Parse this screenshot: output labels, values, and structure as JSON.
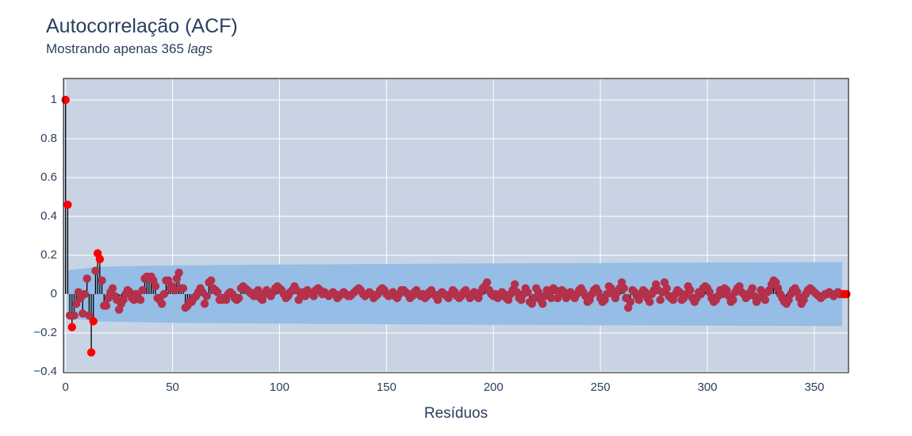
{
  "chart_data": {
    "type": "acf",
    "title": "Autocorrelação (ACF)",
    "subtitle": "Mostrando apenas 365",
    "subtitle_emphasis": "lags",
    "x_label": "Resíduos",
    "xlim": [
      -1,
      366
    ],
    "ylim": [
      -0.404,
      1.11
    ],
    "xticks": [
      0,
      50,
      100,
      150,
      200,
      250,
      300,
      350
    ],
    "yticks": [
      {
        "value": -0.4,
        "label": "−0.4"
      },
      {
        "value": -0.2,
        "label": "−0.2"
      },
      0,
      0.2,
      0.4,
      0.6,
      0.8,
      1
    ],
    "grid": true,
    "background": "#c8d4e3",
    "stem_color": "#000000",
    "marker_color": "#b5304a",
    "significant_color": "#ff0000",
    "band": {
      "color": "#95bde6",
      "x": [
        1,
        2,
        15,
        20,
        50,
        100,
        200,
        363
      ],
      "upper": [
        0.115,
        0.125,
        0.14,
        0.142,
        0.148,
        0.152,
        0.158,
        0.165
      ],
      "lower": [
        -0.115,
        -0.125,
        -0.14,
        -0.142,
        -0.148,
        -0.152,
        -0.158,
        -0.165
      ]
    },
    "values": [
      1,
      0.46,
      -0.11,
      -0.17,
      -0.11,
      -0.05,
      0.01,
      -0.02,
      -0.1,
      0.0,
      0.08,
      -0.11,
      -0.3,
      -0.14,
      0.12,
      0.21,
      0.18,
      0.07,
      -0.06,
      -0.06,
      -0.02,
      0.01,
      0.03,
      -0.01,
      -0.03,
      -0.08,
      -0.05,
      -0.03,
      0.0,
      0.02,
      0.01,
      -0.02,
      -0.03,
      0.0,
      -0.02,
      -0.03,
      0.02,
      0.08,
      0.09,
      0.08,
      0.09,
      0.07,
      0.04,
      -0.02,
      -0.03,
      -0.05,
      0.0,
      0.07,
      0.07,
      0.03,
      0.04,
      0.02,
      0.08,
      0.11,
      0.03,
      0.03,
      -0.07,
      -0.06,
      -0.04,
      -0.04,
      -0.02,
      -0.01,
      0.01,
      0.03,
      0.01,
      -0.05,
      -0.01,
      0.06,
      0.07,
      0.03,
      0.02,
      0.01,
      -0.03,
      -0.03,
      -0.02,
      -0.03,
      0.0,
      0.01,
      0.0,
      -0.02,
      -0.03,
      -0.02,
      0.03,
      0.04,
      0.03,
      0.02,
      0.01,
      0.0,
      -0.01,
      0.01,
      0.02,
      -0.02,
      -0.03,
      0.0,
      0.02,
      0.0,
      -0.01,
      0.01,
      0.03,
      0.04,
      0.03,
      0.02,
      0.0,
      -0.02,
      -0.01,
      0.01,
      0.02,
      0.04,
      0.02,
      -0.03,
      0.0,
      0.01,
      -0.01,
      0.02,
      0.01,
      0.0,
      -0.01,
      0.02,
      0.03,
      0.02,
      0.0,
      0.01,
      0.0,
      -0.01,
      0.0,
      0.01,
      0.0,
      -0.02,
      -0.01,
      0.0,
      0.01,
      0.0,
      -0.01,
      -0.01,
      0.0,
      0.01,
      0.02,
      0.03,
      0.02,
      0.0,
      -0.01,
      0.0,
      0.01,
      0.0,
      -0.02,
      -0.01,
      0.0,
      0.02,
      0.03,
      0.02,
      0.0,
      -0.01,
      0.0,
      0.01,
      -0.01,
      -0.02,
      0.0,
      0.02,
      0.02,
      0.01,
      0.0,
      -0.02,
      -0.01,
      0.01,
      0.02,
      0.0,
      -0.01,
      0.0,
      -0.02,
      -0.01,
      0.01,
      0.02,
      0.0,
      -0.01,
      -0.03,
      0.0,
      0.01,
      0.0,
      -0.01,
      -0.02,
      0.0,
      0.02,
      0.01,
      -0.01,
      -0.02,
      -0.01,
      0.01,
      0.02,
      0.0,
      -0.02,
      -0.01,
      0.01,
      0.0,
      -0.02,
      0.01,
      0.03,
      0.04,
      0.06,
      0.02,
      0.0,
      -0.01,
      0.0,
      -0.02,
      -0.01,
      0.01,
      0.0,
      -0.02,
      -0.03,
      0.0,
      0.02,
      0.05,
      0.01,
      -0.02,
      -0.03,
      0.0,
      0.03,
      0.01,
      -0.04,
      -0.05,
      -0.02,
      0.03,
      0.01,
      -0.03,
      -0.05,
      -0.01,
      0.02,
      0.0,
      -0.02,
      0.03,
      0.02,
      -0.02,
      0.0,
      0.02,
      0.01,
      -0.02,
      0.0,
      0.01,
      -0.01,
      -0.02,
      0.0,
      0.02,
      0.03,
      0.01,
      -0.01,
      -0.04,
      -0.03,
      0.0,
      0.02,
      0.03,
      0.01,
      -0.02,
      -0.04,
      -0.03,
      0.0,
      0.04,
      0.03,
      0.0,
      -0.02,
      0.01,
      0.03,
      0.06,
      0.03,
      -0.02,
      -0.07,
      -0.04,
      0.02,
      0.01,
      -0.01,
      -0.03,
      0.0,
      0.02,
      0.01,
      -0.02,
      -0.04,
      0.0,
      0.02,
      0.05,
      0.02,
      -0.03,
      0.01,
      0.06,
      0.03,
      -0.01,
      -0.02,
      -0.03,
      0.0,
      0.02,
      0.01,
      -0.03,
      -0.02,
      0.0,
      0.04,
      0.02,
      -0.02,
      -0.04,
      -0.02,
      0.01,
      0.0,
      0.03,
      0.04,
      0.03,
      0.01,
      -0.02,
      -0.04,
      -0.03,
      -0.01,
      0.02,
      0.0,
      0.03,
      0.02,
      -0.01,
      -0.04,
      -0.03,
      0.01,
      0.03,
      0.04,
      0.01,
      0.0,
      -0.02,
      -0.01,
      0.01,
      0.03,
      -0.01,
      -0.04,
      -0.02,
      0.02,
      0.0,
      -0.03,
      0.01,
      0.02,
      0.05,
      0.07,
      0.06,
      0.03,
      0.0,
      -0.02,
      -0.04,
      -0.05,
      -0.03,
      0.0,
      0.02,
      0.03,
      0.01,
      -0.02,
      -0.05,
      -0.03,
      0.0,
      0.02,
      0.03,
      0.02,
      0.01,
      0.0,
      -0.01,
      -0.02,
      -0.01,
      0.0,
      0.0,
      0.01,
      0.0,
      -0.01,
      0.0,
      0.01,
      0.0,
      0.0,
      0.0,
      0.0
    ]
  }
}
